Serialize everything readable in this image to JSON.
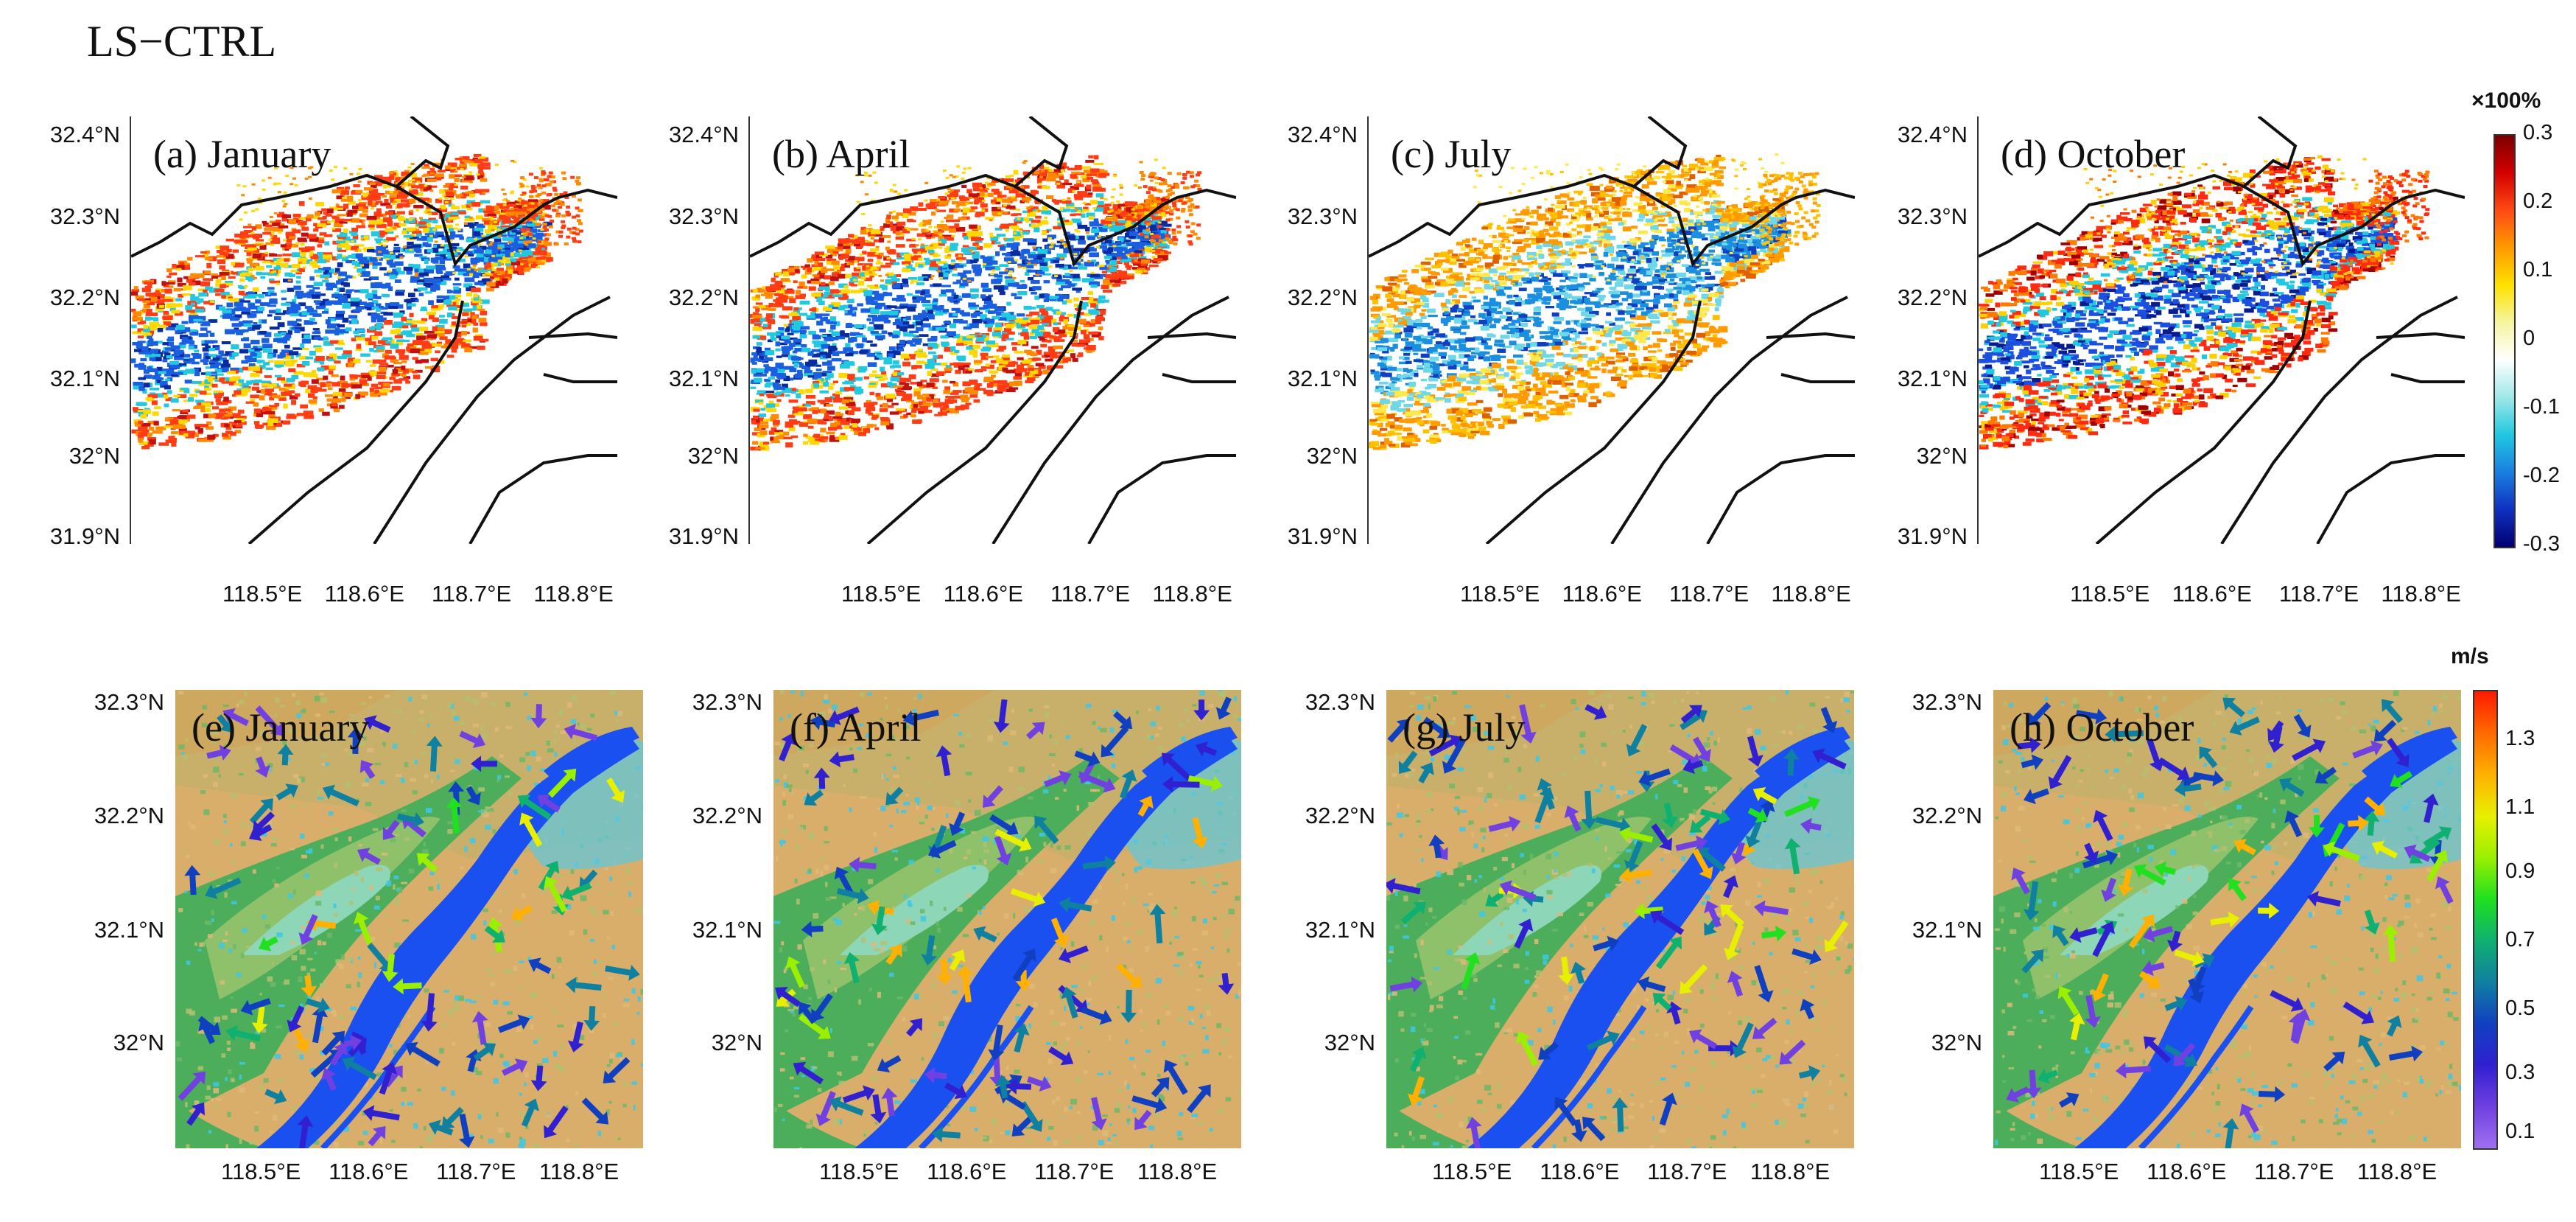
{
  "title": "LS−CTRL",
  "top_row": {
    "y_ticks": [
      "32.4°N",
      "32.3°N",
      "32.2°N",
      "32.1°N",
      "32°N",
      "31.9°N"
    ],
    "x_ticks": [
      "118.5°E",
      "118.6°E",
      "118.7°E",
      "118.8°E"
    ],
    "panels": [
      {
        "label": "(a) January"
      },
      {
        "label": "(b) April"
      },
      {
        "label": "(c) July"
      },
      {
        "label": "(d) October"
      }
    ],
    "colorbar": {
      "title": "×100%",
      "ticks": [
        "0.3",
        "0.2",
        "0.1",
        "0",
        "-0.1",
        "-0.2",
        "-0.3"
      ],
      "colors": [
        "#7a0000",
        "#d40000",
        "#ff4a14",
        "#ff9a00",
        "#ffe000",
        "#f5f5a0",
        "#ffffff",
        "#9fe8e8",
        "#20c8e0",
        "#1a7fe0",
        "#1030c0",
        "#000070"
      ]
    }
  },
  "bottom_row": {
    "y_ticks": [
      "32.3°N",
      "32.2°N",
      "32.1°N",
      "32°N"
    ],
    "x_ticks": [
      "118.5°E",
      "118.6°E",
      "118.7°E",
      "118.8°E"
    ],
    "panels": [
      {
        "label": "(e) January"
      },
      {
        "label": "(f) April"
      },
      {
        "label": "(g) July"
      },
      {
        "label": "(h) October"
      }
    ],
    "colorbar": {
      "title": "m/s",
      "ticks": [
        "1.3",
        "1.1",
        "0.9",
        "0.7",
        "0.5",
        "0.3",
        "0.1"
      ],
      "colors": [
        "#ff1a00",
        "#ff6a00",
        "#ffb000",
        "#e8f000",
        "#9af000",
        "#20e020",
        "#10b070",
        "#1080a0",
        "#1040c0",
        "#3020d0",
        "#7040e0",
        "#a070f0"
      ]
    }
  },
  "colors": {
    "river": "#1a4ff0",
    "water_small": "#3cc8e8",
    "plain": "#d8ae6a",
    "plain2": "#c8b070",
    "mountain_low": "#8fc06a",
    "mountain": "#4cae5a",
    "mountain_high": "#8ed6b8",
    "boundary": "#111111"
  }
}
